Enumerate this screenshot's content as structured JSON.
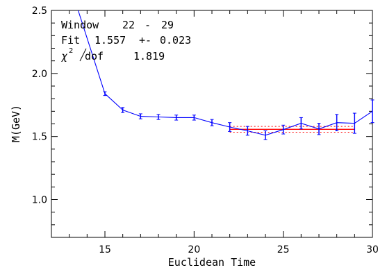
{
  "chart_data": {
    "type": "line",
    "xlabel": "Euclidean Time",
    "ylabel": "M(GeV)",
    "xlim": [
      12,
      30
    ],
    "ylim": [
      0.7,
      2.5
    ],
    "x_ticks": [
      15,
      20,
      25,
      30
    ],
    "y_ticks": [
      1.0,
      1.5,
      2.0,
      2.5
    ],
    "x_tick_labels": [
      "15",
      "20",
      "25",
      "30"
    ],
    "y_tick_labels": [
      "1.0",
      "1.5",
      "2.0",
      "2.5"
    ],
    "grid": false,
    "colors": {
      "series": "#0000ff",
      "fit": "#ff0000"
    },
    "series": [
      {
        "x": [
          13.5,
          15,
          16,
          17,
          18,
          19,
          20,
          21,
          22,
          23,
          24,
          25,
          26,
          27,
          28,
          29,
          30
        ],
        "y": [
          2.5,
          1.84,
          1.71,
          1.66,
          1.655,
          1.65,
          1.65,
          1.61,
          1.575,
          1.545,
          1.51,
          1.555,
          1.605,
          1.56,
          1.61,
          1.605,
          1.7
        ],
        "err": [
          null,
          0.015,
          0.02,
          0.02,
          0.02,
          0.02,
          0.02,
          0.025,
          0.035,
          0.035,
          0.035,
          0.035,
          0.045,
          0.045,
          0.065,
          0.08,
          0.09
        ]
      }
    ],
    "fit": {
      "x_start": 22,
      "x_end": 29,
      "value": 1.557,
      "error": 0.023
    },
    "annotations": {
      "window_label": "Window",
      "window_start": "22",
      "window_sep": "-",
      "window_end": "29",
      "fit_label": "Fit",
      "fit_value": "1.557",
      "fit_pm": "+-",
      "fit_error": "0.023",
      "chi_symbol": "χ",
      "chi_power": "2",
      "dof_label": "dof",
      "chi_value": "1.819"
    }
  }
}
